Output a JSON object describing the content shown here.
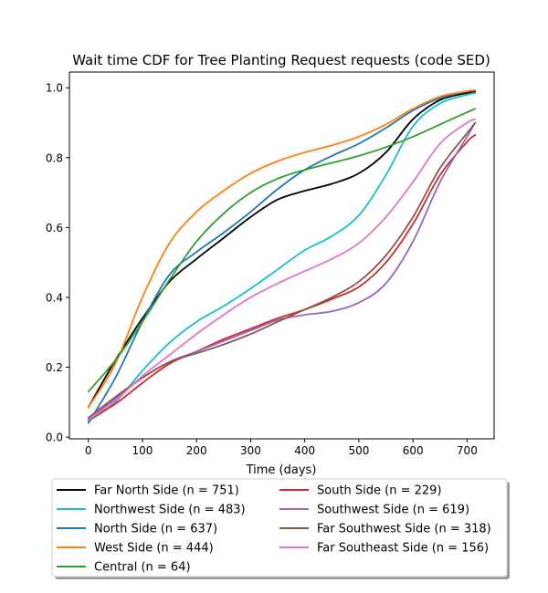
{
  "chart_data": {
    "type": "line",
    "title": "Wait time CDF for Tree Planting Request  requests (code SED)",
    "xlabel": "Time (days)",
    "ylabel": "",
    "xlim": [
      -35,
      750
    ],
    "ylim": [
      -0.005,
      1.045
    ],
    "xticks": [
      0,
      100,
      200,
      300,
      400,
      500,
      600,
      700
    ],
    "xtick_labels": [
      "0",
      "100",
      "200",
      "300",
      "400",
      "500",
      "600",
      "700"
    ],
    "yticks": [
      0.0,
      0.2,
      0.4,
      0.6,
      0.8,
      1.0
    ],
    "ytick_labels": [
      "0.0",
      "0.2",
      "0.4",
      "0.6",
      "0.8",
      "1.0"
    ],
    "grid": false,
    "legend_placement": "below",
    "x": [
      0,
      50,
      100,
      150,
      200,
      250,
      300,
      350,
      400,
      450,
      500,
      550,
      600,
      650,
      700,
      715
    ],
    "series": [
      {
        "name": "Far North Side (n = 751)",
        "color": "#000000",
        "values": [
          0.085,
          0.22,
          0.34,
          0.445,
          0.51,
          0.57,
          0.63,
          0.68,
          0.705,
          0.725,
          0.755,
          0.815,
          0.91,
          0.965,
          0.985,
          0.988
        ]
      },
      {
        "name": "Northwest Side (n = 483)",
        "color": "#17becf",
        "values": [
          0.045,
          0.1,
          0.19,
          0.27,
          0.33,
          0.375,
          0.425,
          0.48,
          0.535,
          0.575,
          0.635,
          0.75,
          0.89,
          0.955,
          0.98,
          0.985
        ]
      },
      {
        "name": "North Side (n = 637)",
        "color": "#1f77b4",
        "values": [
          0.04,
          0.17,
          0.33,
          0.465,
          0.53,
          0.585,
          0.645,
          0.71,
          0.765,
          0.805,
          0.84,
          0.885,
          0.935,
          0.97,
          0.99,
          0.992
        ]
      },
      {
        "name": "West Side (n = 444)",
        "color": "#ff7f0e",
        "values": [
          0.085,
          0.21,
          0.4,
          0.555,
          0.645,
          0.705,
          0.755,
          0.79,
          0.815,
          0.835,
          0.86,
          0.895,
          0.94,
          0.975,
          0.99,
          0.993
        ]
      },
      {
        "name": "Central (n = 64)",
        "color": "#2ca02c",
        "values": [
          0.13,
          0.22,
          0.33,
          0.45,
          0.56,
          0.64,
          0.7,
          0.74,
          0.765,
          0.785,
          0.805,
          0.83,
          0.86,
          0.895,
          0.93,
          0.94
        ]
      },
      {
        "name": "South Side (n = 229)",
        "color": "#d62728",
        "values": [
          0.05,
          0.095,
          0.155,
          0.21,
          0.245,
          0.28,
          0.31,
          0.34,
          0.365,
          0.395,
          0.43,
          0.5,
          0.61,
          0.75,
          0.845,
          0.865
        ]
      },
      {
        "name": "Southwest Side (n = 619)",
        "color": "#9467bd",
        "values": [
          0.055,
          0.11,
          0.17,
          0.215,
          0.245,
          0.275,
          0.305,
          0.335,
          0.35,
          0.36,
          0.385,
          0.44,
          0.56,
          0.73,
          0.86,
          0.9
        ]
      },
      {
        "name": "Far Southwest Side (n = 318)",
        "color": "#8c564b",
        "values": [
          0.055,
          0.115,
          0.17,
          0.215,
          0.24,
          0.265,
          0.295,
          0.33,
          0.365,
          0.4,
          0.445,
          0.52,
          0.63,
          0.77,
          0.87,
          0.9
        ]
      },
      {
        "name": "Far Southeast Side (n = 156)",
        "color": "#e377c2",
        "values": [
          0.05,
          0.105,
          0.175,
          0.235,
          0.295,
          0.35,
          0.4,
          0.44,
          0.475,
          0.51,
          0.555,
          0.63,
          0.73,
          0.84,
          0.9,
          0.91
        ]
      }
    ]
  }
}
